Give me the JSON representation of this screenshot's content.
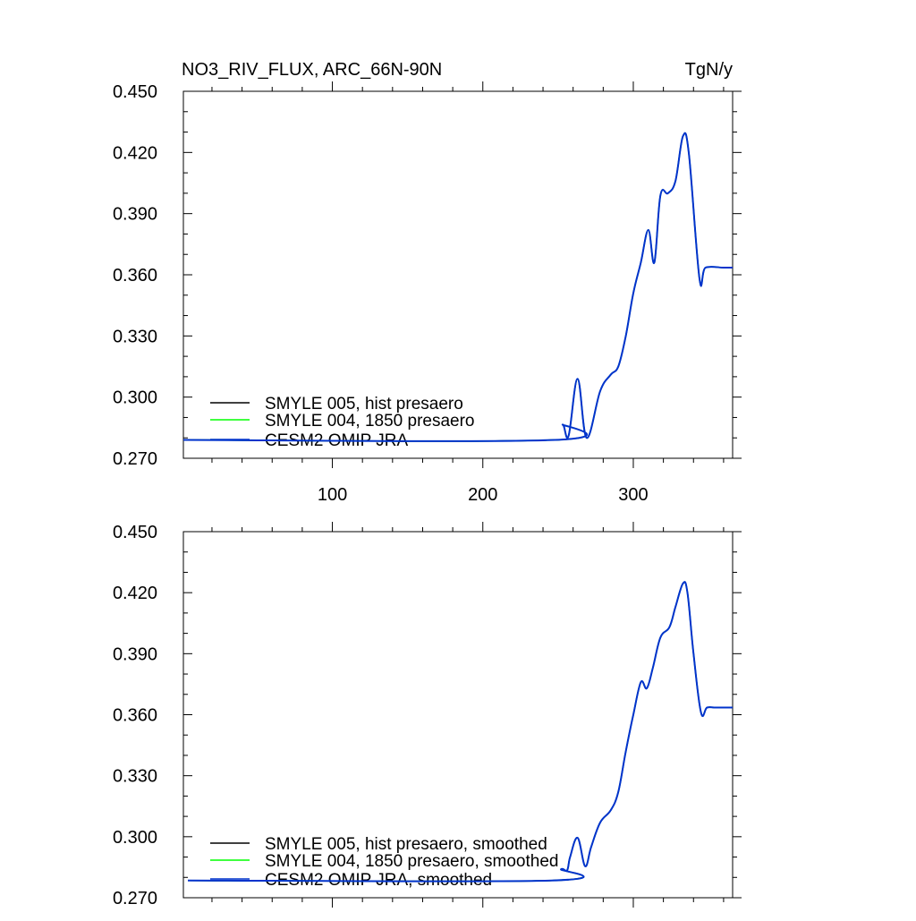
{
  "chart_data": [
    {
      "type": "line",
      "title": "NO3_RIV_FLUX, ARC_66N-90N",
      "units": "TgN/y",
      "xlabel": "",
      "ylabel": "",
      "xlim": [
        1,
        366
      ],
      "ylim": [
        0.27,
        0.45
      ],
      "xticks": [
        100,
        200,
        300
      ],
      "yticks": [
        0.27,
        0.3,
        0.33,
        0.36,
        0.39,
        0.42,
        0.45
      ],
      "ytick_labels": [
        "0.270",
        "0.300",
        "0.330",
        "0.360",
        "0.390",
        "0.420",
        "0.450"
      ],
      "show_xtick_labels": true,
      "grid": false,
      "legend_position": "lower-left",
      "series": [
        {
          "name": "SMYLE 005, hist presaero",
          "color": "#000000",
          "x": [
            1,
            248,
            253,
            257,
            263,
            269,
            278,
            285,
            290,
            295,
            300,
            305,
            310,
            314,
            318,
            323,
            328,
            333,
            337,
            344,
            348,
            360,
            366
          ],
          "y": [
            0.279,
            0.279,
            0.2865,
            0.281,
            0.309,
            0.28,
            0.303,
            0.311,
            0.315,
            0.33,
            0.351,
            0.366,
            0.382,
            0.366,
            0.399,
            0.4,
            0.406,
            0.428,
            0.419,
            0.358,
            0.3635,
            0.3635,
            0.3635
          ]
        },
        {
          "name": "SMYLE 004, 1850 presaero",
          "color": "#00ff00",
          "x": [
            1,
            248,
            253,
            257,
            263,
            269,
            278,
            285,
            290,
            295,
            300,
            305,
            310,
            314,
            318,
            323,
            328,
            333,
            337,
            344,
            348,
            360,
            366
          ],
          "y": [
            0.279,
            0.279,
            0.2865,
            0.281,
            0.309,
            0.28,
            0.303,
            0.311,
            0.315,
            0.33,
            0.351,
            0.366,
            0.382,
            0.366,
            0.399,
            0.4,
            0.406,
            0.428,
            0.419,
            0.358,
            0.3635,
            0.3635,
            0.3635
          ]
        },
        {
          "name": "CESM2 OMIP JRA",
          "color": "#0033cc",
          "x": [
            1,
            248,
            253,
            257,
            263,
            269,
            278,
            285,
            290,
            295,
            300,
            305,
            310,
            314,
            318,
            323,
            328,
            333,
            337,
            344,
            348,
            360,
            366
          ],
          "y": [
            0.279,
            0.279,
            0.2865,
            0.281,
            0.309,
            0.28,
            0.303,
            0.311,
            0.315,
            0.33,
            0.351,
            0.366,
            0.382,
            0.366,
            0.399,
            0.4,
            0.406,
            0.428,
            0.419,
            0.358,
            0.3635,
            0.3635,
            0.3635
          ]
        }
      ]
    },
    {
      "type": "line",
      "title": "",
      "units": "",
      "xlabel": "",
      "ylabel": "",
      "xlim": [
        1,
        366
      ],
      "ylim": [
        0.27,
        0.45
      ],
      "xticks": [
        100,
        200,
        300
      ],
      "yticks": [
        0.27,
        0.3,
        0.33,
        0.36,
        0.39,
        0.42,
        0.45
      ],
      "ytick_labels": [
        "0.270",
        "0.300",
        "0.330",
        "0.360",
        "0.390",
        "0.420",
        "0.450"
      ],
      "show_xtick_labels": false,
      "grid": false,
      "legend_position": "lower-left",
      "series": [
        {
          "name": "SMYLE 005, hist presaero, smoothed",
          "color": "#000000",
          "x": [
            4,
            246,
            252,
            256,
            258,
            263,
            268,
            272,
            278,
            285,
            290,
            295,
            300,
            305,
            309,
            313,
            318,
            324,
            328,
            333,
            336,
            340,
            345,
            349,
            355,
            366
          ],
          "y": [
            0.2785,
            0.2785,
            0.284,
            0.2835,
            0.29,
            0.2995,
            0.2855,
            0.295,
            0.307,
            0.313,
            0.322,
            0.342,
            0.36,
            0.376,
            0.373,
            0.383,
            0.398,
            0.403,
            0.413,
            0.4245,
            0.42,
            0.39,
            0.361,
            0.3635,
            0.3635,
            0.3635
          ]
        },
        {
          "name": "SMYLE 004, 1850 presaero, smoothed",
          "color": "#00ff00",
          "x": [
            4,
            246,
            252,
            256,
            258,
            263,
            268,
            272,
            278,
            285,
            290,
            295,
            300,
            305,
            309,
            313,
            318,
            324,
            328,
            333,
            336,
            340,
            345,
            349,
            355,
            366
          ],
          "y": [
            0.2785,
            0.2785,
            0.284,
            0.2835,
            0.29,
            0.2995,
            0.2855,
            0.295,
            0.307,
            0.313,
            0.322,
            0.342,
            0.36,
            0.376,
            0.373,
            0.383,
            0.398,
            0.403,
            0.413,
            0.4245,
            0.42,
            0.39,
            0.361,
            0.3635,
            0.3635,
            0.3635
          ]
        },
        {
          "name": "CESM2 OMIP JRA, smoothed",
          "color": "#0033cc",
          "x": [
            4,
            246,
            252,
            256,
            258,
            263,
            268,
            272,
            278,
            285,
            290,
            295,
            300,
            305,
            309,
            313,
            318,
            324,
            328,
            333,
            336,
            340,
            345,
            349,
            355,
            366
          ],
          "y": [
            0.2785,
            0.2785,
            0.284,
            0.2835,
            0.29,
            0.2995,
            0.2855,
            0.295,
            0.307,
            0.313,
            0.322,
            0.342,
            0.36,
            0.376,
            0.373,
            0.383,
            0.398,
            0.403,
            0.413,
            0.4245,
            0.42,
            0.39,
            0.361,
            0.3635,
            0.3635,
            0.3635
          ]
        }
      ]
    }
  ]
}
